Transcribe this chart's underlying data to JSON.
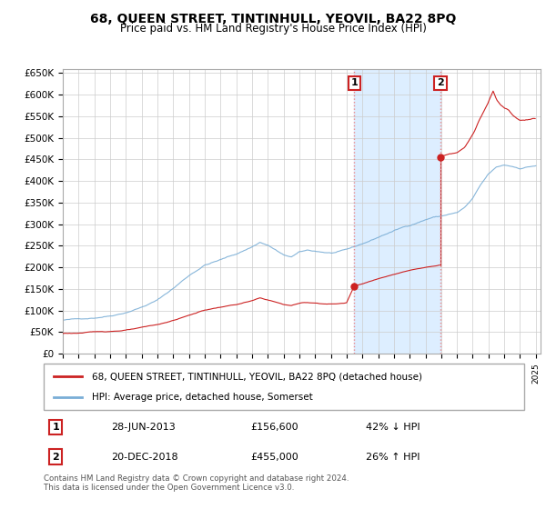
{
  "title": "68, QUEEN STREET, TINTINHULL, YEOVIL, BA22 8PQ",
  "subtitle": "Price paid vs. HM Land Registry's House Price Index (HPI)",
  "legend_line1": "68, QUEEN STREET, TINTINHULL, YEOVIL, BA22 8PQ (detached house)",
  "legend_line2": "HPI: Average price, detached house, Somerset",
  "footnote": "Contains HM Land Registry data © Crown copyright and database right 2024.\nThis data is licensed under the Open Government Licence v3.0.",
  "purchase1_date": "28-JUN-2013",
  "purchase1_price": 156600,
  "purchase1_x": 2013.49,
  "purchase2_date": "20-DEC-2018",
  "purchase2_price": 455000,
  "purchase2_x": 2018.96,
  "purchase1_note": "42% ↓ HPI",
  "purchase2_note": "26% ↑ HPI",
  "hpi_color": "#7aaed6",
  "price_color": "#cc2222",
  "marker_box_color": "#cc2222",
  "dashed_line_color": "#ee8888",
  "shaded_region_color": "#ddeeff",
  "ylim": [
    0,
    660000
  ],
  "yticks": [
    0,
    50000,
    100000,
    150000,
    200000,
    250000,
    300000,
    350000,
    400000,
    450000,
    500000,
    550000,
    600000,
    650000
  ],
  "xlim_start": 1995.0,
  "xlim_end": 2025.3
}
